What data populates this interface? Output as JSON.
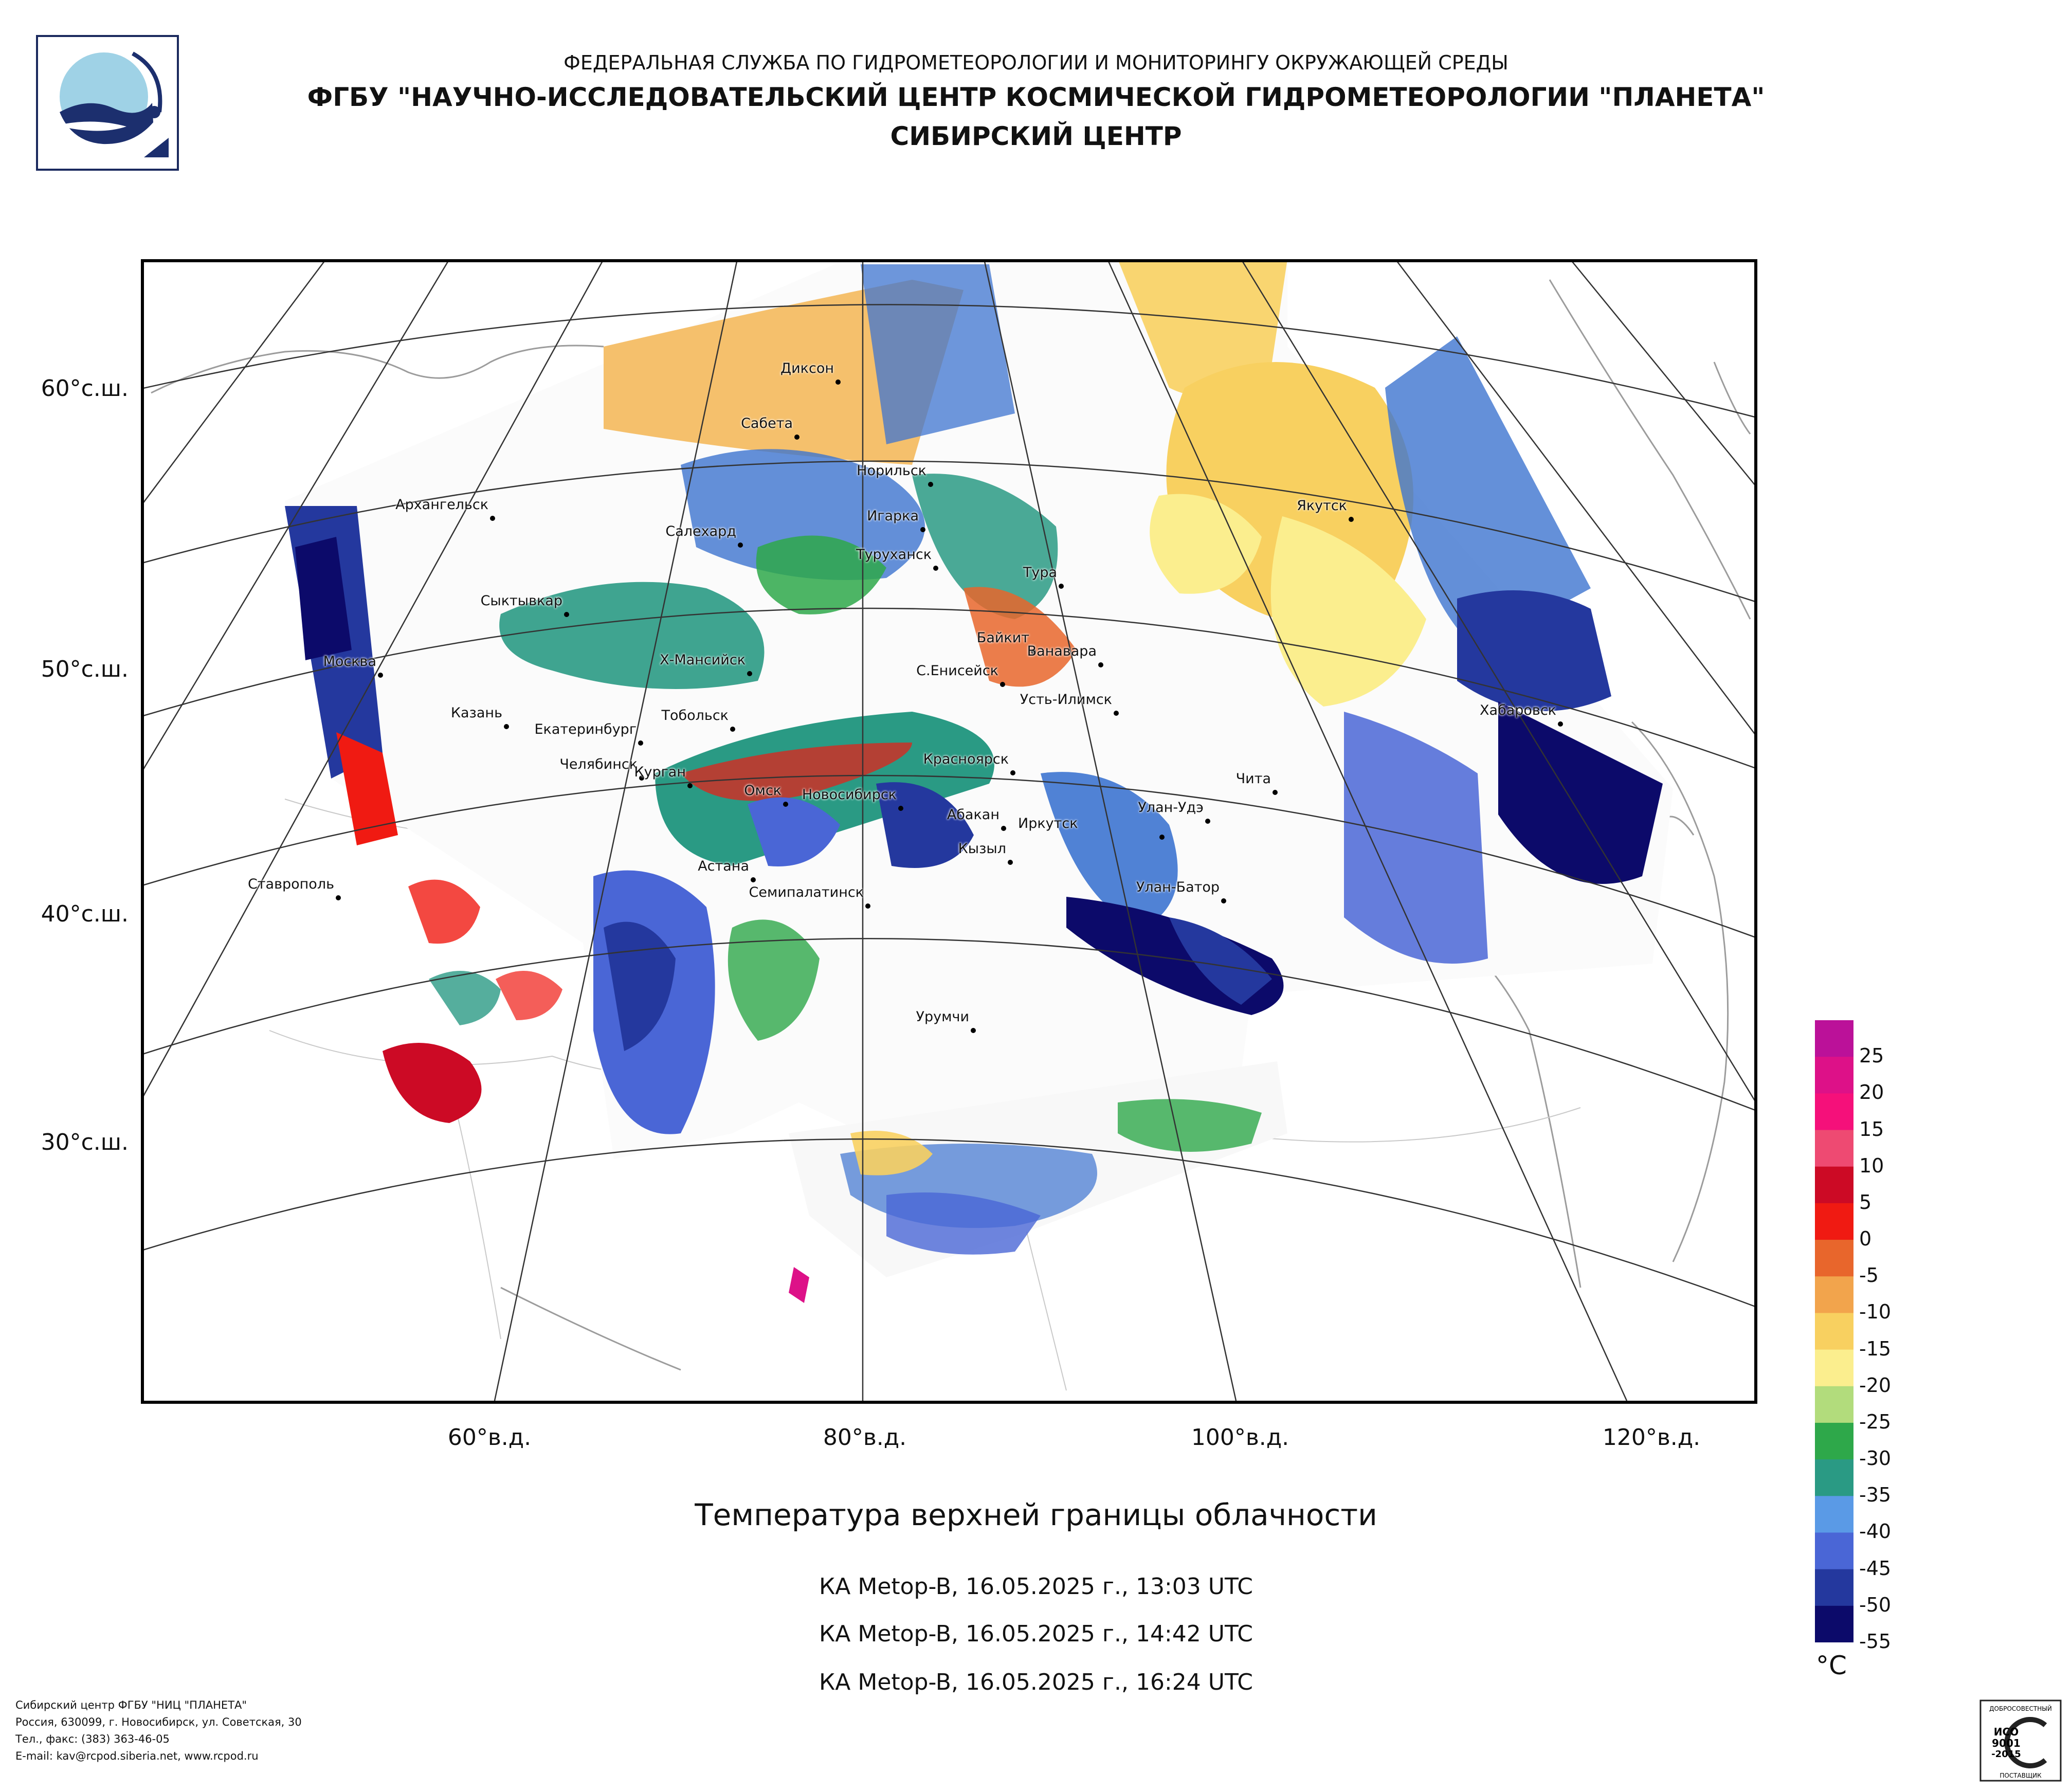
{
  "header": {
    "organization": "ФЕДЕРАЛЬНАЯ СЛУЖБА ПО ГИДРОМЕТЕОРОЛОГИИ И МОНИТОРИНГУ ОКРУЖАЮЩЕЙ СРЕДЫ",
    "institute": "ФГБУ \"НАУЧНО-ИССЛЕДОВАТЕЛЬСКИЙ ЦЕНТР КОСМИЧЕСКОЙ ГИДРОМЕТЕОРОЛОГИИ \"ПЛАНЕТА\"",
    "center": "СИБИРСКИЙ ЦЕНТР"
  },
  "map": {
    "latitude_labels": [
      "60°с.ш.",
      "50°с.ш.",
      "40°с.ш.",
      "30°с.ш."
    ],
    "longitude_labels": [
      "60°в.д.",
      "80°в.д.",
      "100°в.д.",
      "120°в.д."
    ],
    "cities": [
      "Диксон",
      "Сабета",
      "Норильск",
      "Игарка",
      "Туруханск",
      "Салехард",
      "Архангельск",
      "Сыктывкар",
      "Москва",
      "Казань",
      "Екатеринбург",
      "Х-Мансийск",
      "Тобольск",
      "Челябинск",
      "Курган",
      "Омск",
      "Новосибирск",
      "Астана",
      "Семипалатинск",
      "Ставрополь",
      "Тура",
      "Байкит",
      "Ванавара",
      "С.Енисейск",
      "Усть-Илимск",
      "Красноярск",
      "Абакан",
      "Иркутск",
      "Улан-Удэ",
      "Кызыл",
      "Улан-Батор",
      "Чита",
      "Якутск",
      "Хабаровск",
      "Урумчи"
    ]
  },
  "product": {
    "title": "Температура верхней границы облачности",
    "passes": [
      "КА Metop-B, 16.05.2025 г., 13:03 UTC",
      "КА Metop-B, 16.05.2025 г., 14:42 UTC",
      "КА Metop-B, 16.05.2025 г., 16:24 UTC"
    ]
  },
  "legend": {
    "unit": "°C",
    "ticks": [
      "25",
      "20",
      "15",
      "10",
      "5",
      "0",
      "-5",
      "-10",
      "-15",
      "-20",
      "-25",
      "-30",
      "-35",
      "-40",
      "-45",
      "-50",
      "-55"
    ],
    "colors": [
      "#bb1199",
      "#dd1188",
      "#f5107a",
      "#ee4a72",
      "#cc0a25",
      "#f01a12",
      "#e8662c",
      "#f2a44c",
      "#f8d060",
      "#fbee8e",
      "#b2dc7c",
      "#2ea84a",
      "#2a9a84",
      "#5a9ae6",
      "#4a66d6",
      "#24389e",
      "#0c0a6a"
    ]
  },
  "footer": {
    "lines": [
      "Сибирский центр ФГБУ \"НИЦ \"ПЛАНЕТА\"",
      "Россия, 630099, г. Новосибирск, ул. Советская, 30",
      "Тел., факс: (383) 363-46-05",
      "E-mail: kav@rcpod.siberia.net, www.rcpod.ru"
    ]
  },
  "certificate": {
    "top": "ДОБРОСОВЕСТНЫЙ",
    "standard": "ИСО",
    "code": "9001",
    "year": "-2015",
    "bottom": "ПОСТАВЩИК"
  }
}
